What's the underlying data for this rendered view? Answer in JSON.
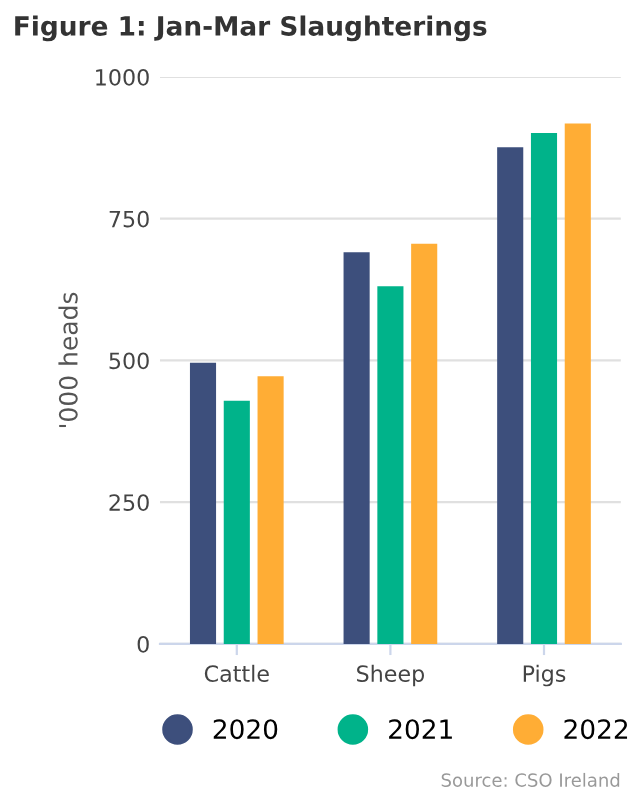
{
  "chart_data": {
    "type": "bar",
    "title": "Figure 1: Jan-Mar Slaughterings",
    "ylabel": "'000 heads",
    "categories": [
      "Cattle",
      "Sheep",
      "Pigs"
    ],
    "series": [
      {
        "name": "2020",
        "color": "#3d4f7c",
        "values": [
          496,
          691,
          876
        ]
      },
      {
        "name": "2021",
        "color": "#00b38a",
        "values": [
          429,
          631,
          901
        ]
      },
      {
        "name": "2022",
        "color": "#ffad35",
        "values": [
          472,
          706,
          918
        ]
      }
    ],
    "ylim": [
      0,
      1000
    ],
    "yticks": [
      0,
      250,
      500,
      750,
      1000
    ],
    "grid": "y",
    "legend": "bottom",
    "annotations": [
      "Source: CSO Ireland"
    ]
  }
}
